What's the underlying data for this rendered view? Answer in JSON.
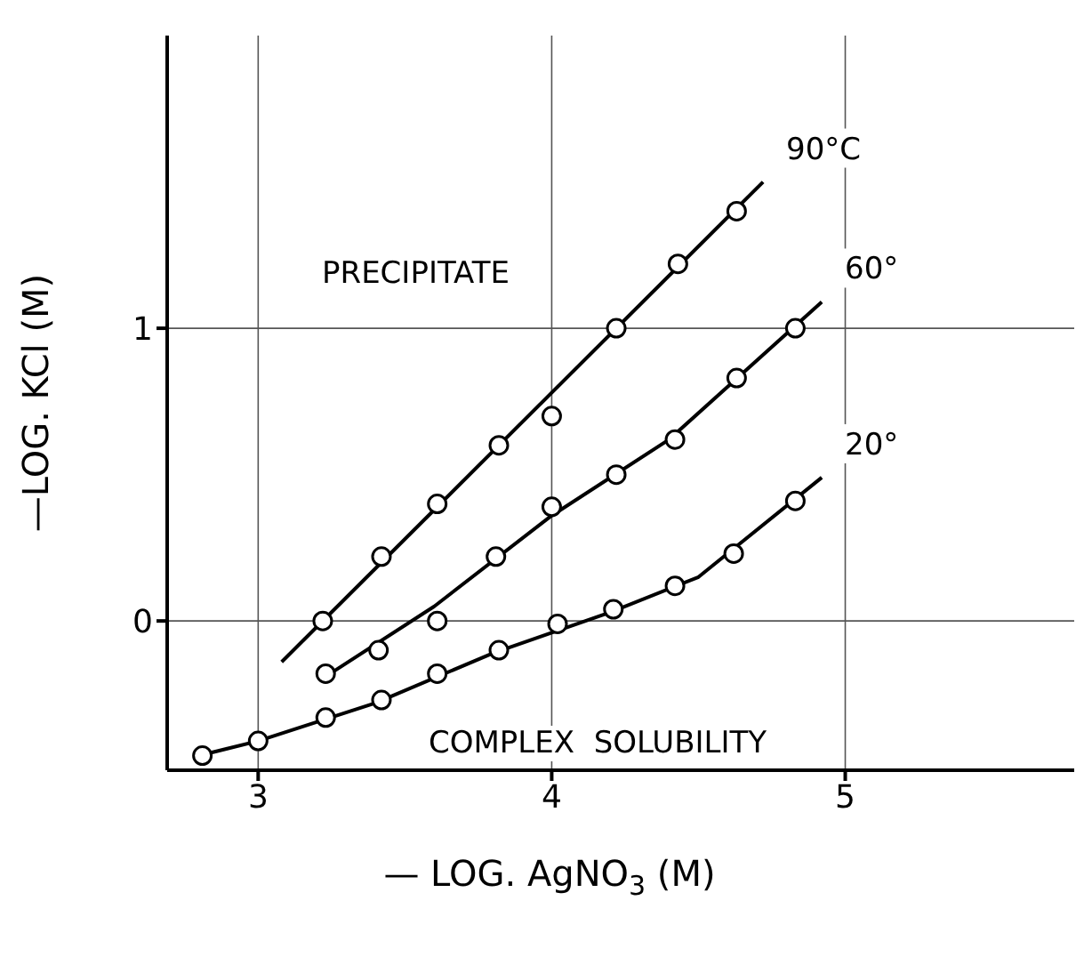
{
  "chart_data": {
    "type": "scatter",
    "xlabel": "— LOG. AgNO$_{3}$   (M)",
    "ylabel": "—LOG. KCl (M)",
    "xlim": [
      2.69,
      5.78
    ],
    "ylim": [
      -0.51,
      2.0
    ],
    "xticks": [
      3,
      4,
      5
    ],
    "yticks": [
      0,
      1
    ],
    "grid": true,
    "line_style": "solid",
    "annotations": [
      "PRECIPITATE",
      "COMPLEX  SOLUBILITY"
    ],
    "series": [
      {
        "marker": "circle",
        "color": "#000000",
        "x": [
          3.22,
          3.42,
          3.61,
          3.82,
          4.0,
          4.22,
          4.43,
          4.63
        ],
        "values": [
          0.0,
          0.22,
          0.4,
          0.6,
          0.7,
          1.0,
          1.22,
          1.4
        ]
      },
      {
        "marker": "circle",
        "color": "#000000",
        "x": [
          3.23,
          3.41,
          3.61,
          3.81,
          4.0,
          4.22,
          4.42,
          4.63,
          4.83
        ],
        "values": [
          -0.18,
          -0.1,
          0.0,
          0.22,
          0.39,
          0.5,
          0.62,
          0.83,
          1.0
        ]
      },
      {
        "marker": "circle",
        "color": "#000000",
        "x": [
          2.81,
          3.0,
          3.23,
          3.42,
          3.61,
          3.82,
          4.02,
          4.21,
          4.42,
          4.62,
          4.83
        ],
        "values": [
          -0.46,
          -0.41,
          -0.33,
          -0.27,
          -0.18,
          -0.1,
          -0.01,
          0.04,
          0.12,
          0.23,
          0.41
        ]
      },
      {
        "type": "line",
        "marker": "none",
        "name": "90°C",
        "color": "#000000",
        "x": [
          3.08,
          4.72
        ],
        "values": [
          -0.14,
          1.5
        ]
      },
      {
        "type": "line",
        "marker": "none",
        "name": "60°",
        "color": "#000000",
        "x": [
          3.23,
          3.6,
          4.0,
          4.4,
          4.92
        ],
        "values": [
          -0.19,
          0.05,
          0.36,
          0.62,
          1.09
        ]
      },
      {
        "type": "line",
        "marker": "none",
        "name": "20°",
        "color": "#000000",
        "x": [
          2.8,
          3.0,
          3.4,
          3.8,
          4.2,
          4.5,
          4.92
        ],
        "values": [
          -0.46,
          -0.41,
          -0.28,
          -0.11,
          0.03,
          0.15,
          0.49
        ]
      }
    ]
  }
}
